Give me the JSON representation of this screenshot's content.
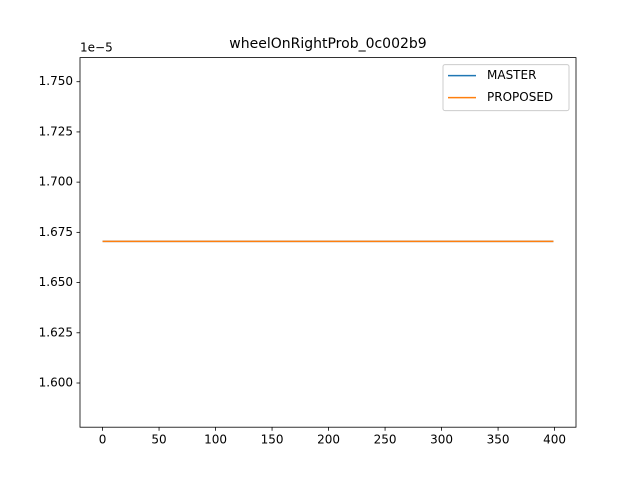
{
  "chart_data": {
    "type": "line",
    "title": "wheelOnRightProb_0c002b9",
    "x": [
      0,
      399
    ],
    "series": [
      {
        "name": "MASTER",
        "color": "#1f77b4",
        "values": [
          1.6705,
          1.6705
        ]
      },
      {
        "name": "PROPOSED",
        "color": "#ff7f0e",
        "values": [
          1.6705,
          1.6705
        ]
      }
    ],
    "xlim": [
      -19.95,
      418.95
    ],
    "xticks": [
      0,
      50,
      100,
      150,
      200,
      250,
      300,
      350,
      400
    ],
    "ylim": [
      1.578,
      1.762
    ],
    "yticks": [
      {
        "value": 1.6,
        "label": "1.600"
      },
      1.625,
      {
        "value": 1.65,
        "label": "1.650"
      },
      1.675,
      {
        "value": 1.7,
        "label": "1.700"
      },
      1.725,
      {
        "value": 1.75,
        "label": "1.750"
      }
    ],
    "y_offset_label": "1e−5",
    "legend": "upper right",
    "grid": false
  }
}
